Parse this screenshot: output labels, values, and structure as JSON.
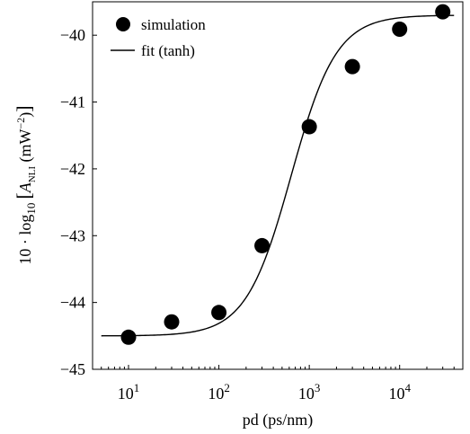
{
  "chart_data": {
    "type": "scatter",
    "xscale": "log",
    "xlim": [
      4,
      50000
    ],
    "ylim": [
      -45,
      -39.5
    ],
    "xlabel": "pd (ps/nm)",
    "ylabel": {
      "prefix": "10 · log",
      "log_sub": "10",
      "bracket_open": "[",
      "var": "A",
      "var_sub": "NLI",
      "unit_open": " (mW",
      "unit_exp": "−2",
      "unit_close": ")",
      "bracket_close": "]"
    },
    "x_ticks": [
      {
        "base": "10",
        "exp": "1",
        "value": 10
      },
      {
        "base": "10",
        "exp": "2",
        "value": 100
      },
      {
        "base": "10",
        "exp": "3",
        "value": 1000
      },
      {
        "base": "10",
        "exp": "4",
        "value": 10000
      }
    ],
    "y_ticks": [
      {
        "label": "−45",
        "value": -45
      },
      {
        "label": "−44",
        "value": -44
      },
      {
        "label": "−43",
        "value": -43
      },
      {
        "label": "−42",
        "value": -42
      },
      {
        "label": "−41",
        "value": -41
      },
      {
        "label": "−40",
        "value": -40
      }
    ],
    "series": [
      {
        "name": "simulation",
        "kind": "markers",
        "x": [
          10,
          30,
          100,
          300,
          1000,
          3000,
          10000,
          30000
        ],
        "y": [
          -44.52,
          -44.29,
          -44.15,
          -43.15,
          -41.37,
          -40.47,
          -39.91,
          -39.65
        ]
      },
      {
        "name": "fit (tanh)",
        "kind": "line",
        "model": {
          "mid": -42.1,
          "amp": 2.4,
          "center_log10": 2.8,
          "width_log10": 0.5
        },
        "x_range": [
          5,
          40000
        ]
      }
    ],
    "legend": "top-left",
    "grid": false,
    "colors": {
      "markers": "#000000",
      "line": "#000000",
      "axes": "#000000"
    }
  }
}
